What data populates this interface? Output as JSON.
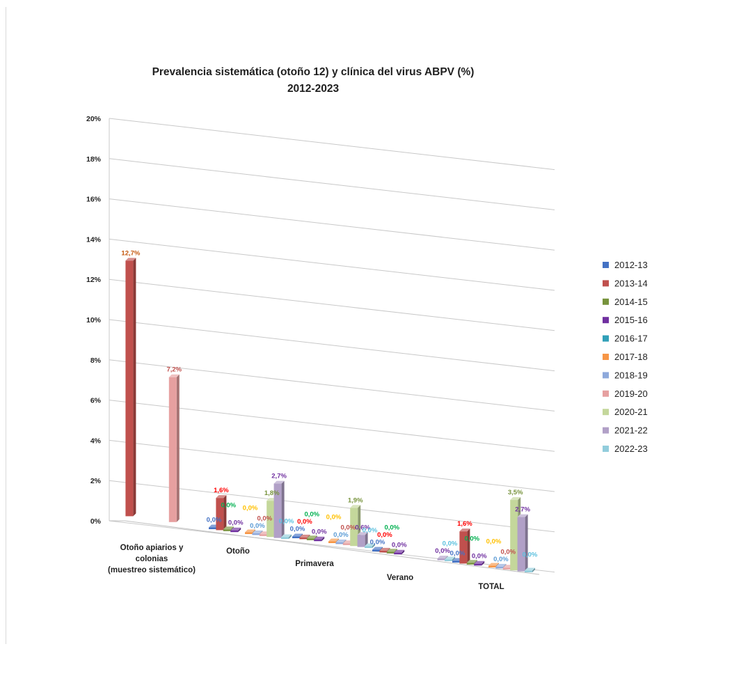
{
  "chart_data": {
    "type": "bar",
    "title": "Prevalencia sistemática (otoño 12) y clínica del virus ABPV (%)",
    "subtitle": "2012-2023",
    "categories": [
      "Otoño apiarios y colonias (muestreo sistemático)",
      "Otoño",
      "Primavera",
      "Verano",
      "TOTAL"
    ],
    "y_ticks": [
      "0%",
      "2%",
      "4%",
      "6%",
      "8%",
      "10%",
      "12%",
      "14%",
      "16%",
      "18%",
      "20%"
    ],
    "ylim": [
      0,
      20
    ],
    "grid": true,
    "legend_position": "right",
    "series": [
      {
        "name": "2012-13",
        "color": "#4472c4",
        "values": [
          null,
          0.0,
          0.0,
          0.0,
          0.0
        ],
        "labels": [
          "",
          "0,0%",
          "0,0%",
          "0,0%",
          "0,0%"
        ]
      },
      {
        "name": "2013-14",
        "color": "#c0504d",
        "values": [
          12.7,
          1.6,
          0.0,
          0.0,
          1.6
        ],
        "labels": [
          "12,7%",
          "1,6%",
          "0,0%",
          "0,0%",
          "1,6%"
        ]
      },
      {
        "name": "2014-15",
        "color": "#77933c",
        "values": [
          null,
          0.0,
          0.0,
          0.0,
          0.0
        ],
        "labels": [
          "",
          "0,0%",
          "0,0%",
          "0,0%",
          "0,0%"
        ]
      },
      {
        "name": "2015-16",
        "color": "#7030a0",
        "values": [
          null,
          0.0,
          0.0,
          0.0,
          0.0
        ],
        "labels": [
          "",
          "0,0%",
          "0,0%",
          "0,0%",
          "0,0%"
        ]
      },
      {
        "name": "2016-17",
        "color": "#31a0b8",
        "values": [
          null,
          null,
          null,
          null,
          null
        ],
        "labels": [
          "",
          "",
          "",
          "",
          ""
        ]
      },
      {
        "name": "2017-18",
        "color": "#f79646",
        "values": [
          null,
          0.0,
          0.0,
          null,
          0.0
        ],
        "labels": [
          "",
          "0,0%",
          "0,0%",
          "",
          "0,0%"
        ]
      },
      {
        "name": "2018-19",
        "color": "#8ea9db",
        "values": [
          null,
          0.0,
          0.0,
          null,
          0.0
        ],
        "labels": [
          "",
          "0,0%",
          "0,0%",
          "",
          "0,0%"
        ]
      },
      {
        "name": "2019-20",
        "color": "#e6a0a0",
        "values": [
          7.2,
          0.0,
          0.0,
          null,
          0.0
        ],
        "labels": [
          "7,2%",
          "0,0%",
          "0,0%",
          "",
          "0,0%"
        ]
      },
      {
        "name": "2020-21",
        "color": "#c4d79b",
        "values": [
          null,
          1.8,
          1.9,
          null,
          3.5
        ],
        "labels": [
          "",
          "1,8%",
          "1,9%",
          "",
          "3,5%"
        ]
      },
      {
        "name": "2021-22",
        "color": "#b1a0c7",
        "values": [
          null,
          2.7,
          0.6,
          0.0,
          2.7
        ],
        "labels": [
          "",
          "2,7%",
          "0,6%",
          "0,0%",
          "2,7%"
        ]
      },
      {
        "name": "2022-23",
        "color": "#92cddc",
        "values": [
          null,
          0.0,
          0.0,
          0.0,
          0.0
        ],
        "labels": [
          "",
          "0,0%",
          "0,0%",
          "0,0%",
          "0,0%"
        ]
      }
    ],
    "label_colors": [
      "#4472c4",
      "#ff0000",
      "#00b050",
      "#7030a0",
      "#31a0b8",
      "#ffc000",
      "#5b9bd5",
      "#c0504d",
      "#77933c",
      "#7030a0",
      "#5bc0de"
    ],
    "first_category_label_colors": {
      "2013-14": "#c55a11",
      "2019-20": "#c0504d"
    }
  }
}
